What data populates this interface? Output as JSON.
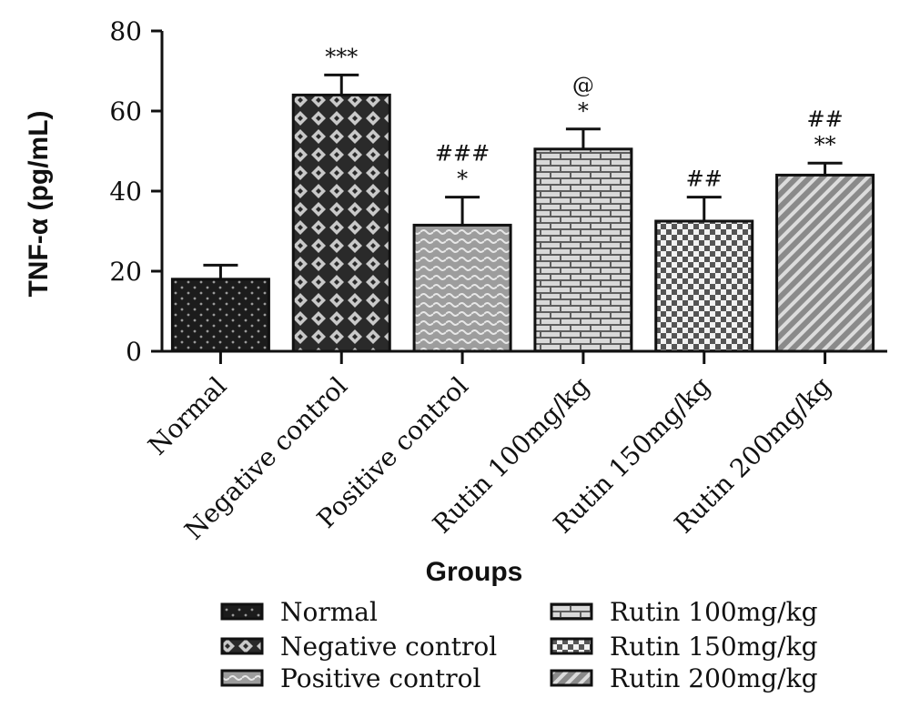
{
  "chart_data": {
    "type": "bar",
    "xlabel": "Groups",
    "ylabel": "TNF-α (pg/mL)",
    "ylim": [
      0,
      80
    ],
    "yticks": [
      0,
      20,
      40,
      60,
      80
    ],
    "categories": [
      "Normal",
      "Negative control",
      "Positive control",
      "Rutin 100mg/kg",
      "Rutin 150mg/kg",
      "Rutin 200mg/kg"
    ],
    "values": [
      18,
      64,
      31.5,
      50.5,
      32.5,
      44
    ],
    "errors": [
      3.5,
      5,
      7,
      5,
      6,
      3
    ],
    "annotations": [
      [],
      [
        "***"
      ],
      [
        "###",
        "*"
      ],
      [
        "@",
        "*"
      ],
      [
        "##"
      ],
      [
        "##",
        "**"
      ]
    ],
    "patterns": [
      "dots",
      "diamonds",
      "waves",
      "bricks",
      "checks",
      "diagonal"
    ],
    "legend": {
      "placement": "bottom",
      "entries": [
        "Normal",
        "Negative control",
        "Positive control",
        "Rutin 100mg/kg",
        "Rutin 150mg/kg",
        "Rutin 200mg/kg"
      ]
    }
  }
}
